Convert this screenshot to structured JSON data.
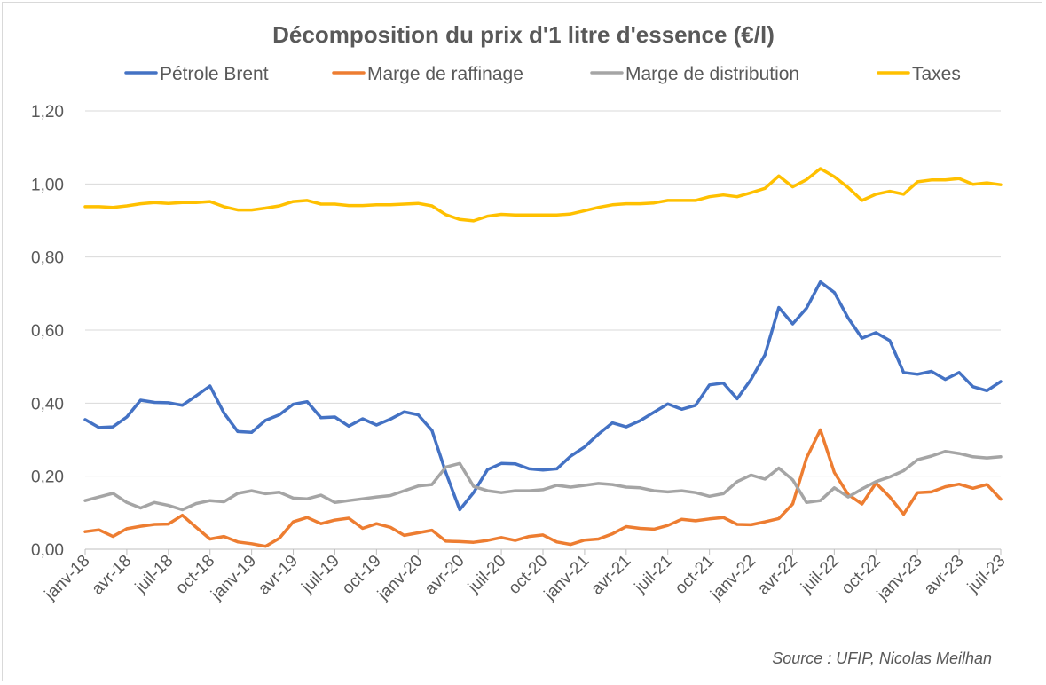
{
  "chart_data": {
    "type": "line",
    "title": "Décomposition du prix d'1 litre d'essence (€/l)",
    "source": "Source : UFIP, Nicolas Meilhan",
    "legend_position": "top",
    "grid": true,
    "ylim": [
      0,
      1.2
    ],
    "yticks": [
      "0,00",
      "0,20",
      "0,40",
      "0,60",
      "0,80",
      "1,00",
      "1,20"
    ],
    "xtick_labels": [
      "janv-18",
      "avr-18",
      "juil-18",
      "oct-18",
      "janv-19",
      "avr-19",
      "juil-19",
      "oct-19",
      "janv-20",
      "avr-20",
      "juil-20",
      "oct-20",
      "janv-21",
      "avr-21",
      "juil-21",
      "oct-21",
      "janv-22",
      "avr-22",
      "juil-22",
      "oct-22",
      "janv-23",
      "avr-23",
      "juil-23"
    ],
    "series": [
      {
        "name": "Pétrole Brent",
        "color": "#4472c4",
        "values": [
          0.355,
          0.333,
          0.335,
          0.362,
          0.408,
          0.402,
          0.401,
          0.394,
          0.42,
          0.447,
          0.373,
          0.322,
          0.32,
          0.353,
          0.368,
          0.397,
          0.404,
          0.36,
          0.362,
          0.337,
          0.357,
          0.34,
          0.356,
          0.376,
          0.368,
          0.325,
          0.21,
          0.108,
          0.155,
          0.218,
          0.235,
          0.234,
          0.22,
          0.217,
          0.22,
          0.255,
          0.28,
          0.315,
          0.346,
          0.335,
          0.352,
          0.375,
          0.398,
          0.383,
          0.394,
          0.45,
          0.455,
          0.412,
          0.465,
          0.532,
          0.662,
          0.617,
          0.66,
          0.732,
          0.703,
          0.633,
          0.578,
          0.593,
          0.571,
          0.484,
          0.479,
          0.487,
          0.465,
          0.484,
          0.445,
          0.434,
          0.459
        ]
      },
      {
        "name": "Marge de raffinage",
        "color": "#ed7d31",
        "values": [
          0.048,
          0.053,
          0.035,
          0.056,
          0.063,
          0.068,
          0.069,
          0.093,
          0.06,
          0.028,
          0.035,
          0.02,
          0.015,
          0.008,
          0.03,
          0.075,
          0.087,
          0.07,
          0.08,
          0.085,
          0.057,
          0.07,
          0.06,
          0.038,
          0.045,
          0.052,
          0.022,
          0.021,
          0.019,
          0.024,
          0.032,
          0.024,
          0.035,
          0.039,
          0.02,
          0.013,
          0.025,
          0.028,
          0.042,
          0.062,
          0.057,
          0.055,
          0.065,
          0.082,
          0.078,
          0.083,
          0.087,
          0.068,
          0.067,
          0.075,
          0.084,
          0.124,
          0.25,
          0.327,
          0.21,
          0.15,
          0.124,
          0.181,
          0.143,
          0.096,
          0.155,
          0.157,
          0.171,
          0.178,
          0.167,
          0.177,
          0.137
        ]
      },
      {
        "name": "Marge de distribution",
        "color": "#a5a5a5",
        "values": [
          0.133,
          0.143,
          0.153,
          0.128,
          0.113,
          0.128,
          0.12,
          0.108,
          0.125,
          0.133,
          0.13,
          0.153,
          0.16,
          0.152,
          0.156,
          0.14,
          0.138,
          0.148,
          0.128,
          0.133,
          0.138,
          0.143,
          0.147,
          0.16,
          0.173,
          0.177,
          0.225,
          0.235,
          0.172,
          0.16,
          0.155,
          0.16,
          0.16,
          0.163,
          0.175,
          0.17,
          0.175,
          0.18,
          0.177,
          0.17,
          0.168,
          0.16,
          0.157,
          0.16,
          0.155,
          0.145,
          0.152,
          0.185,
          0.203,
          0.192,
          0.222,
          0.19,
          0.128,
          0.133,
          0.168,
          0.143,
          0.165,
          0.185,
          0.198,
          0.215,
          0.245,
          0.255,
          0.268,
          0.262,
          0.253,
          0.25,
          0.253
        ]
      },
      {
        "name": "Taxes",
        "color": "#ffc000",
        "values": [
          0.938,
          0.938,
          0.936,
          0.94,
          0.946,
          0.949,
          0.947,
          0.949,
          0.949,
          0.952,
          0.938,
          0.929,
          0.929,
          0.934,
          0.94,
          0.952,
          0.955,
          0.945,
          0.945,
          0.941,
          0.941,
          0.943,
          0.943,
          0.945,
          0.947,
          0.94,
          0.916,
          0.903,
          0.899,
          0.912,
          0.917,
          0.915,
          0.915,
          0.915,
          0.915,
          0.918,
          0.927,
          0.936,
          0.943,
          0.946,
          0.946,
          0.948,
          0.955,
          0.955,
          0.955,
          0.965,
          0.97,
          0.965,
          0.976,
          0.988,
          1.022,
          0.992,
          1.012,
          1.042,
          1.02,
          0.99,
          0.955,
          0.972,
          0.98,
          0.972,
          1.006,
          1.011,
          1.011,
          1.015,
          0.999,
          1.003,
          0.998
        ]
      }
    ]
  }
}
